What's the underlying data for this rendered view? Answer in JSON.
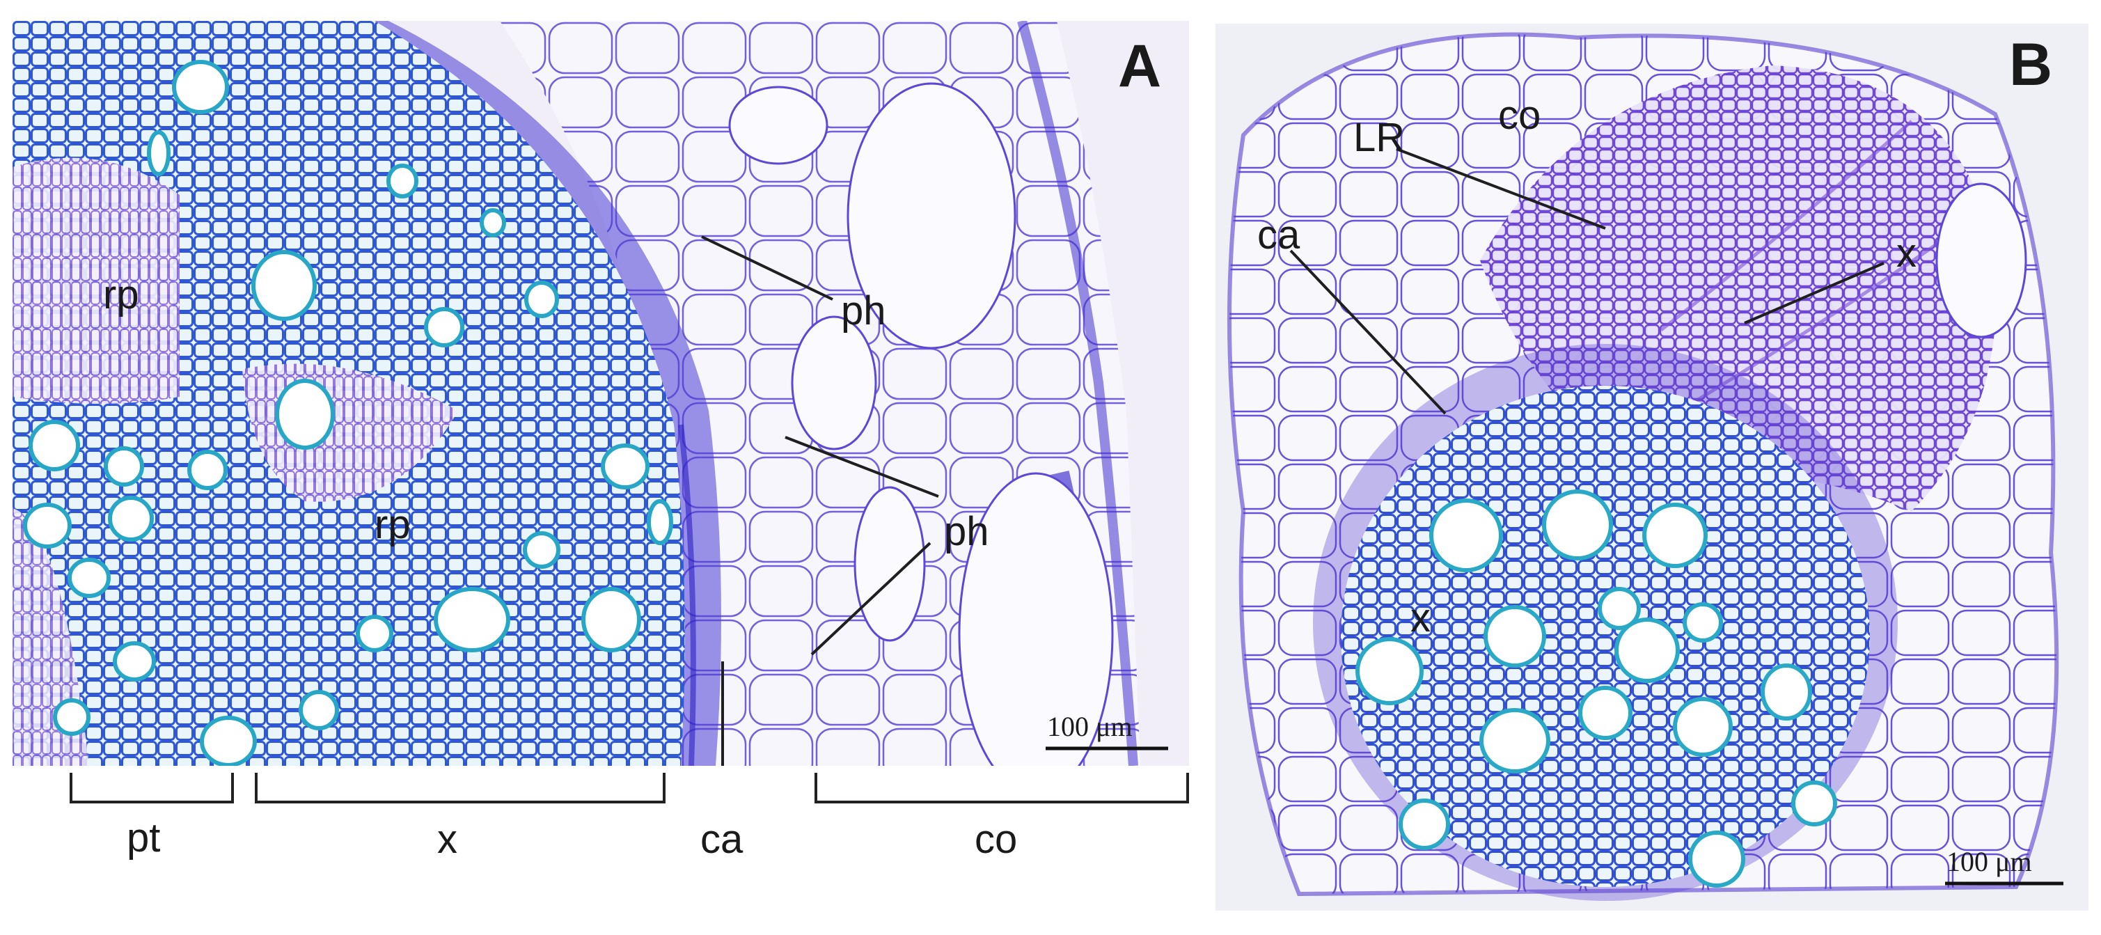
{
  "colors": {
    "stain_xylem": "#28a9c9",
    "stain_cell_wall": "#3f2fd0",
    "stain_phloem": "#6a3fd6",
    "stain_cortex": "#b9a8ea",
    "background": "#f1eef7"
  },
  "panel_a": {
    "letter": "A",
    "labels": {
      "rp_1": "rp",
      "rp_2": "rp",
      "ph_1": "ph",
      "ph_2": "ph",
      "pt": "pt",
      "x": "x",
      "ca": "ca",
      "co": "co"
    },
    "scale_bar": "100 μm"
  },
  "panel_b": {
    "letter": "B",
    "labels": {
      "LR": "LR",
      "co": "co",
      "ca": "ca",
      "x_1": "x",
      "x_2": "x"
    },
    "scale_bar": "100 μm"
  }
}
